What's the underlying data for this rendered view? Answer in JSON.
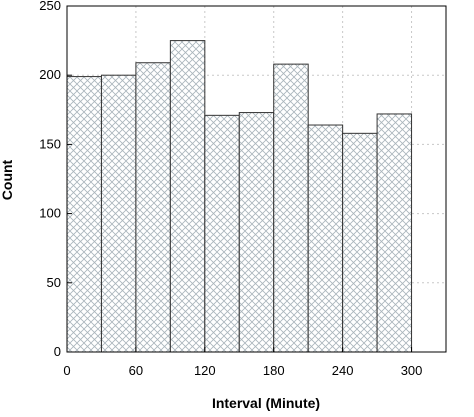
{
  "chart_data": {
    "type": "bar",
    "title": "",
    "xlabel": "Interval (Minute)",
    "ylabel": "Count",
    "bins": [
      {
        "start": 0,
        "end": 30,
        "value": 199
      },
      {
        "start": 30,
        "end": 60,
        "value": 200
      },
      {
        "start": 60,
        "end": 90,
        "value": 209
      },
      {
        "start": 90,
        "end": 120,
        "value": 225
      },
      {
        "start": 120,
        "end": 150,
        "value": 171
      },
      {
        "start": 150,
        "end": 180,
        "value": 173
      },
      {
        "start": 180,
        "end": 210,
        "value": 208
      },
      {
        "start": 210,
        "end": 240,
        "value": 164
      },
      {
        "start": 240,
        "end": 270,
        "value": 158
      },
      {
        "start": 270,
        "end": 300,
        "value": 172
      }
    ],
    "xlim": [
      0,
      330
    ],
    "ylim": [
      0,
      250
    ],
    "xticks": [
      0,
      60,
      120,
      180,
      240,
      300
    ],
    "yticks": [
      0,
      50,
      100,
      150,
      200,
      250
    ],
    "grid": true,
    "bar_fill": "crosshatch",
    "colors": {
      "bar_edge": "#333333",
      "hatch": "#a9b4bb",
      "grid": "#c8c8c8",
      "axis": "#000000"
    }
  }
}
